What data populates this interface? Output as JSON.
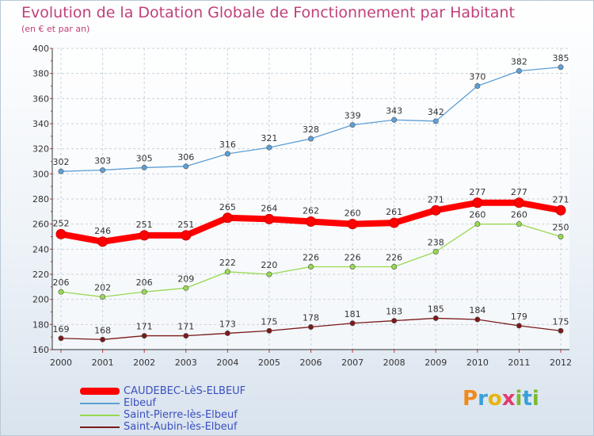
{
  "title": "Evolution de la Dotation Globale de Fonctionnement par Habitant",
  "subtitle": "(en € et par an)",
  "brand": {
    "letters": [
      "P",
      "r",
      "o",
      "x",
      "i",
      "t",
      "i"
    ],
    "colors": [
      "#f08a1c",
      "#3aa0d8",
      "#e8b40e",
      "#e23a6e",
      "#7dbb2e",
      "#3aa0d8",
      "#7dbb2e"
    ]
  },
  "chart_data": {
    "type": "line",
    "title": "Evolution de la Dotation Globale de Fonctionnement par Habitant",
    "subtitle": "(en € et par an)",
    "x": [
      "2000",
      "2001",
      "2002",
      "2003",
      "2004",
      "2005",
      "2006",
      "2007",
      "2008",
      "2009",
      "2010",
      "2011",
      "2012"
    ],
    "ylim": [
      160,
      400
    ],
    "yticks": [
      "160",
      "180",
      "200",
      "220",
      "240",
      "260",
      "280",
      "300",
      "320",
      "340",
      "360",
      "380",
      "400"
    ],
    "grid": true,
    "legend_position": "bottom-left",
    "series": [
      {
        "name": "CAUDEBEC-LèS-ELBEUF",
        "values": [
          252,
          246,
          251,
          251,
          265,
          264,
          262,
          260,
          261,
          271,
          277,
          277,
          271
        ],
        "color": "#ff0000",
        "emphasis": true
      },
      {
        "name": "Elbeuf",
        "values": [
          302,
          303,
          305,
          306,
          316,
          321,
          328,
          339,
          343,
          342,
          370,
          382,
          385
        ],
        "color": "#5e9fd6",
        "emphasis": false
      },
      {
        "name": "Saint-Pierre-lès-Elbeuf",
        "values": [
          206,
          202,
          206,
          209,
          222,
          220,
          226,
          226,
          226,
          238,
          260,
          260,
          250
        ],
        "color": "#97d94f",
        "emphasis": false
      },
      {
        "name": "Saint-Aubin-lès-Elbeuf",
        "values": [
          169,
          168,
          171,
          171,
          173,
          175,
          178,
          181,
          183,
          185,
          184,
          179,
          175
        ],
        "color": "#7a1a1a",
        "emphasis": false
      }
    ]
  }
}
